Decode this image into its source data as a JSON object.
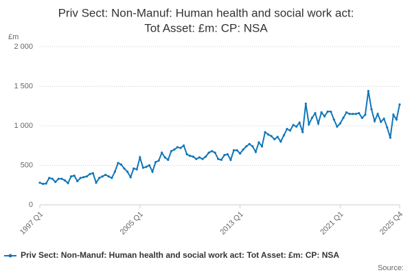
{
  "chart_data": {
    "type": "line",
    "title": [
      "Priv Sect: Non-Manuf: Human health and social work act:",
      "Tot Asset: £m: CP: NSA"
    ],
    "y_label": "£m",
    "source": "Source:",
    "categories": [
      "1997 Q1",
      null,
      null,
      null,
      null,
      null,
      null,
      null,
      null,
      null,
      null,
      null,
      null,
      null,
      null,
      null,
      null,
      null,
      null,
      null,
      null,
      null,
      null,
      null,
      null,
      null,
      null,
      null,
      null,
      null,
      null,
      null,
      "2005 Q1",
      null,
      null,
      null,
      null,
      null,
      null,
      null,
      null,
      null,
      null,
      null,
      null,
      null,
      null,
      null,
      null,
      null,
      null,
      null,
      null,
      null,
      null,
      null,
      null,
      null,
      null,
      null,
      null,
      null,
      null,
      null,
      "2013 Q1",
      null,
      null,
      null,
      null,
      null,
      null,
      null,
      null,
      null,
      null,
      null,
      null,
      null,
      null,
      null,
      null,
      null,
      null,
      null,
      null,
      null,
      null,
      null,
      null,
      null,
      null,
      null,
      null,
      null,
      null,
      null,
      "2021 Q1",
      null,
      null,
      null,
      null,
      null,
      null,
      null,
      null,
      null,
      null,
      null,
      null,
      null,
      null,
      null,
      null,
      null,
      null,
      "2025 Q4"
    ],
    "series": [
      {
        "name": "Priv Sect: Non-Manuf: Human health and social work act: Tot Asset: £m: CP: NSA",
        "color": "#0f76b8",
        "values": [
          280,
          265,
          270,
          340,
          330,
          290,
          330,
          330,
          310,
          275,
          360,
          370,
          300,
          340,
          350,
          360,
          390,
          400,
          280,
          340,
          360,
          380,
          360,
          340,
          420,
          530,
          510,
          460,
          420,
          350,
          460,
          450,
          600,
          470,
          480,
          500,
          420,
          540,
          560,
          660,
          600,
          570,
          680,
          700,
          730,
          720,
          750,
          640,
          620,
          610,
          580,
          600,
          580,
          610,
          660,
          680,
          660,
          580,
          570,
          630,
          640,
          570,
          690,
          690,
          650,
          700,
          740,
          770,
          740,
          670,
          790,
          740,
          920,
          890,
          870,
          830,
          860,
          800,
          880,
          960,
          940,
          1010,
          990,
          1040,
          920,
          1280,
          1020,
          1100,
          1160,
          1030,
          1170,
          1120,
          1180,
          1180,
          1080,
          990,
          1030,
          1100,
          1170,
          1150,
          1150,
          1150,
          1160,
          1100,
          1140,
          1440,
          1210,
          1060,
          1150,
          1050,
          1090,
          980,
          850,
          1140,
          1080,
          1270
        ]
      }
    ],
    "ylim": [
      0,
      2000
    ],
    "yticks": [
      0,
      500,
      {
        "value": 1000,
        "label": "1 000"
      },
      {
        "value": 1500,
        "label": "1 500"
      },
      {
        "value": 2000,
        "label": "2 000"
      }
    ],
    "grid": true
  }
}
